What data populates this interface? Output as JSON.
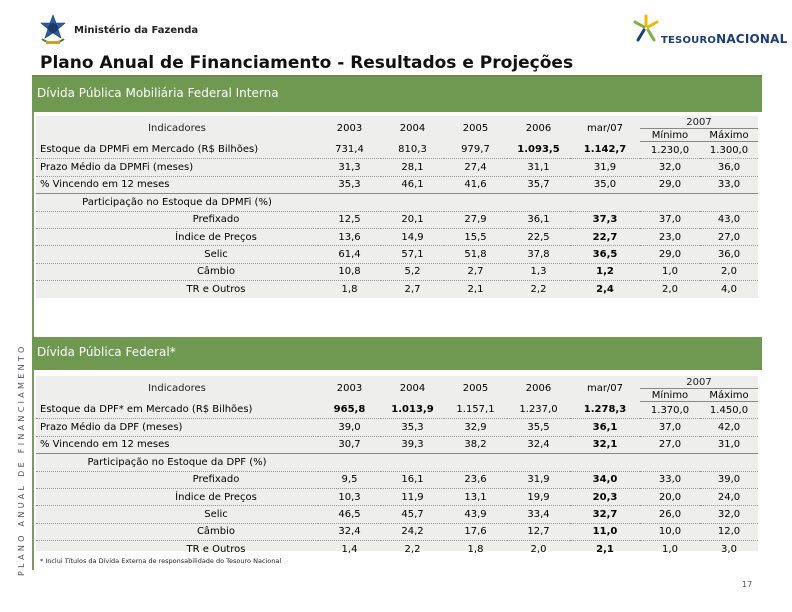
{
  "header": {
    "ministry": "Ministério da Fazenda",
    "logo_small": "TESOURO",
    "logo_big": "NACIONAL",
    "title": "Plano Anual de Financiamento - Resultados e Projeções"
  },
  "side_text": "PLANO ANUAL DE FINANCIAMENTO",
  "section1": {
    "label": "Dívida Pública Mobiliária Federal Interna",
    "col_indicadores": "Indicadores",
    "years": [
      "2003",
      "2004",
      "2005",
      "2006",
      "mar/07"
    ],
    "year_2007": "2007",
    "min_label": "Mínimo",
    "max_label": "Máximo",
    "rows": [
      [
        "Estoque da DPMFi em Mercado (R$ Bilhões)",
        "731,4",
        "810,3",
        "979,7",
        "1.093,5",
        "1.142,7",
        "1.230,0",
        "1.300,0"
      ],
      [
        "Prazo Médio da DPMFi (meses)",
        "31,3",
        "28,1",
        "27,4",
        "31,1",
        "31,9",
        "32,0",
        "36,0"
      ],
      [
        "% Vincendo em 12 meses",
        "35,3",
        "46,1",
        "41,6",
        "35,7",
        "35,0",
        "29,0",
        "33,0"
      ]
    ],
    "participacao": "Participação no Estoque da DPMFi (%)",
    "sub_rows": [
      [
        "Prefixado",
        "12,5",
        "20,1",
        "27,9",
        "36,1",
        "37,3",
        "37,0",
        "43,0"
      ],
      [
        "Índice de Preços",
        "13,6",
        "14,9",
        "15,5",
        "22,5",
        "22,7",
        "23,0",
        "27,0"
      ],
      [
        "Selic",
        "61,4",
        "57,1",
        "51,8",
        "37,8",
        "36,5",
        "29,0",
        "36,0"
      ],
      [
        "Câmbio",
        "10,8",
        "5,2",
        "2,7",
        "1,3",
        "1,2",
        "1,0",
        "2,0"
      ],
      [
        "TR e Outros",
        "1,8",
        "2,7",
        "2,1",
        "2,2",
        "2,4",
        "2,0",
        "4,0"
      ]
    ]
  },
  "section2": {
    "label": "Dívida Pública Federal*",
    "col_indicadores": "Indicadores",
    "years": [
      "2003",
      "2004",
      "2005",
      "2006",
      "mar/07"
    ],
    "year_2007": "2007",
    "min_label": "Mínimo",
    "max_label": "Máximo",
    "rows": [
      [
        "Estoque da DPF* em Mercado (R$ Bilhões)",
        "965,8",
        "1.013,9",
        "1.157,1",
        "1.237,0",
        "1.278,3",
        "1.370,0",
        "1.450,0"
      ],
      [
        "Prazo Médio da DPF (meses)",
        "39,0",
        "35,3",
        "32,9",
        "35,5",
        "36,1",
        "37,0",
        "42,0"
      ],
      [
        "% Vincendo em 12 meses",
        "30,7",
        "39,3",
        "38,2",
        "32,4",
        "32,1",
        "27,0",
        "31,0"
      ]
    ],
    "participacao": "Participação no Estoque da DPF (%)",
    "sub_rows": [
      [
        "Prefixado",
        "9,5",
        "16,1",
        "23,6",
        "31,9",
        "34,0",
        "33,0",
        "39,0"
      ],
      [
        "Índice de Preços",
        "10,3",
        "11,9",
        "13,1",
        "19,9",
        "20,3",
        "20,0",
        "24,0"
      ],
      [
        "Selic",
        "46,5",
        "45,7",
        "43,9",
        "33,4",
        "32,7",
        "26,0",
        "32,0"
      ],
      [
        "Câmbio",
        "32,4",
        "24,2",
        "17,6",
        "12,7",
        "11,0",
        "10,0",
        "12,0"
      ],
      [
        "TR e Outros",
        "1,4",
        "2,2",
        "1,8",
        "2,0",
        "2,1",
        "1,0",
        "3,0"
      ]
    ]
  },
  "footnote": "* Inclui Títulos da Dívida Externa de responsabilidade do Tesouro Nacional",
  "page_number": "17",
  "colors": {
    "section_bar": "#6f9850",
    "panel_bg": "#eeeeec",
    "logo_blue": "#1c3f7a"
  }
}
